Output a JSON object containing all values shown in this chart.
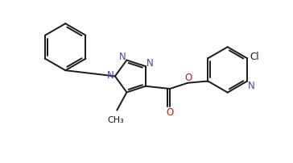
{
  "background_color": "#ffffff",
  "line_color": "#1a1a1a",
  "n_color": "#4444aa",
  "o_color": "#aa2222",
  "line_width": 1.4,
  "font_size": 8.5,
  "figsize": [
    3.64,
    2.03
  ],
  "dpi": 100,
  "xlim": [
    0,
    9.0
  ],
  "ylim": [
    0,
    5.0
  ]
}
